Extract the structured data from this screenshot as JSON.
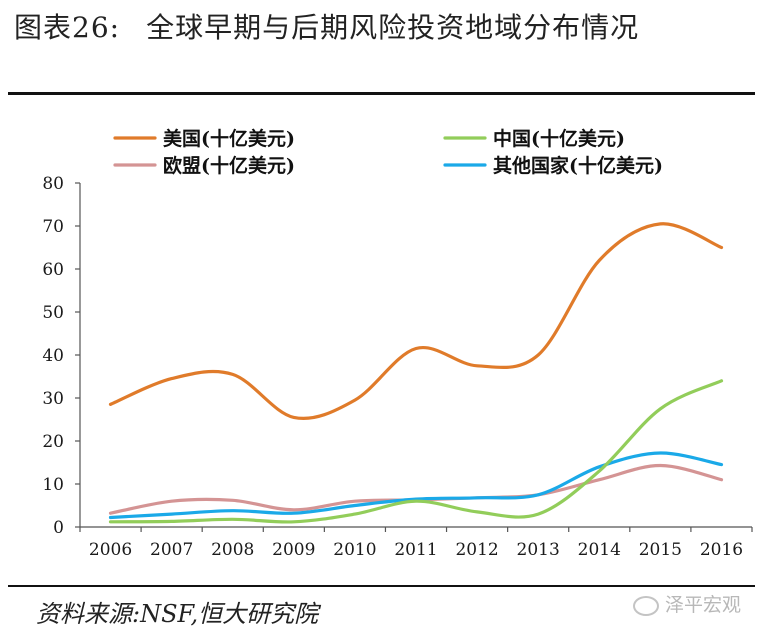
{
  "figure": {
    "label": "图表26:",
    "title": "全球早期与后期风险投资地域分布情况"
  },
  "source_note": "资料来源:NSF,恒大研究院",
  "watermark": "泽平宏观",
  "chart_data": {
    "type": "line",
    "x": [
      "2006",
      "2007",
      "2008",
      "2009",
      "2010",
      "2011",
      "2012",
      "2013",
      "2014",
      "2015",
      "2016"
    ],
    "ylim": [
      0,
      80
    ],
    "yticks": [
      "0",
      "10",
      "20",
      "30",
      "40",
      "50",
      "60",
      "70",
      "80"
    ],
    "grid": false,
    "legend_position": "top",
    "series": [
      {
        "name": "美国(十亿美元)",
        "color": "#e07b2a",
        "values": [
          28.5,
          34.5,
          35.5,
          25.5,
          29.5,
          41.5,
          37.5,
          40,
          62,
          70.5,
          65
        ]
      },
      {
        "name": "中国(十亿美元)",
        "color": "#92cd5a",
        "values": [
          1.2,
          1.3,
          1.8,
          1.2,
          3,
          6,
          3.5,
          3,
          13,
          27.5,
          34
        ]
      },
      {
        "name": "欧盟(十亿美元)",
        "color": "#d49494",
        "values": [
          3.2,
          6,
          6.2,
          4,
          6,
          6.3,
          6.8,
          7.5,
          11,
          14.3,
          11
        ]
      },
      {
        "name": "其他国家(十亿美元)",
        "color": "#1aa9e8",
        "values": [
          2.2,
          3,
          3.8,
          3.2,
          5,
          6.5,
          6.8,
          7.5,
          14,
          17.2,
          14.5
        ]
      }
    ]
  }
}
